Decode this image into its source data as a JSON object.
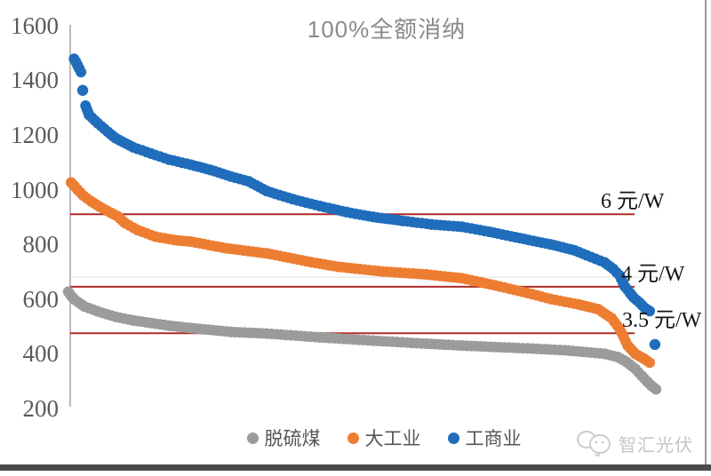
{
  "watermark": {
    "logo": "chat-bubbles-logo",
    "text": "智汇光伏"
  },
  "chart_data": {
    "type": "scatter",
    "title": "100%全额消纳",
    "xlabel": "",
    "ylabel": "",
    "ylim": [
      200,
      1600
    ],
    "yticks": [
      1600,
      1400,
      1200,
      1000,
      800,
      600,
      400,
      200
    ],
    "grid": "off",
    "legend_position": "bottom",
    "aux_gridline_value": 680,
    "threshold_lines": [
      {
        "label": "6 元/W",
        "value": 910,
        "color": "#B12A27"
      },
      {
        "label": "4 元/W",
        "value": 645,
        "color": "#B12A27"
      },
      {
        "label": "3.5 元/W",
        "value": 475,
        "color": "#B12A27"
      }
    ],
    "series": [
      {
        "name": "脱硫煤",
        "color": "#9B9B9B",
        "segments": [
          [
            [
              -0.8,
              627
            ],
            [
              -0.3,
              612
            ],
            [
              0.3,
              598
            ],
            [
              1.5,
              580
            ],
            [
              2,
              573
            ],
            [
              4.3,
              555
            ],
            [
              7.4,
              535
            ],
            [
              10.4,
              522
            ],
            [
              16.6,
              503
            ],
            [
              20.4,
              494
            ],
            [
              27.3,
              480
            ],
            [
              33.5,
              474
            ],
            [
              42.7,
              460
            ],
            [
              51.9,
              448
            ],
            [
              61.1,
              437
            ],
            [
              67.3,
              430
            ],
            [
              79.4,
              419
            ],
            [
              85.7,
              412
            ],
            [
              91.9,
              400
            ],
            [
              94.2,
              388
            ],
            [
              95.7,
              370
            ],
            [
              97.2,
              345
            ],
            [
              98.3,
              320
            ],
            [
              99.2,
              300
            ],
            [
              100,
              283
            ],
            [
              100.8,
              270
            ]
          ]
        ]
      },
      {
        "name": "大工业",
        "color": "#ED7D31",
        "segments": [
          [
            [
              -0.3,
              1026
            ],
            [
              0.3,
              1012
            ],
            [
              0.8,
              1000
            ],
            [
              1.8,
              978
            ],
            [
              3.1,
              958
            ],
            [
              4.6,
              938
            ],
            [
              6.6,
              915
            ],
            [
              7.7,
              903
            ],
            [
              9,
              878
            ],
            [
              11.2,
              852
            ],
            [
              14.3,
              828
            ],
            [
              17.5,
              816
            ],
            [
              20.4,
              810
            ],
            [
              26.4,
              786
            ],
            [
              33.5,
              767
            ],
            [
              41.2,
              735
            ],
            [
              45.8,
              718
            ],
            [
              53.5,
              701
            ],
            [
              61.1,
              690
            ],
            [
              67.3,
              676
            ],
            [
              73,
              650
            ],
            [
              79.4,
              618
            ],
            [
              82.6,
              600
            ],
            [
              87.5,
              580
            ],
            [
              90.8,
              563
            ],
            [
              93.1,
              530
            ],
            [
              94.5,
              491
            ],
            [
              95.9,
              430
            ],
            [
              97.2,
              400
            ],
            [
              98.7,
              382
            ],
            [
              99.7,
              368
            ]
          ]
        ]
      },
      {
        "name": "工商业",
        "color": "#1F6DBB",
        "segments": [
          [
            [
              0.2,
              1478
            ],
            [
              0.5,
              1468
            ],
            [
              0.8,
              1455
            ],
            [
              1.1,
              1442
            ],
            [
              1.4,
              1430
            ]
          ],
          [
            [
              1.7,
              1363
            ]
          ],
          [
            [
              2.2,
              1307
            ],
            [
              2.8,
              1273
            ],
            [
              4.3,
              1243
            ],
            [
              6,
              1212
            ],
            [
              7.4,
              1188
            ],
            [
              10.4,
              1155
            ],
            [
              13.5,
              1132
            ],
            [
              16.6,
              1110
            ],
            [
              20.4,
              1091
            ],
            [
              23.8,
              1072
            ],
            [
              27.3,
              1048
            ],
            [
              30.4,
              1030
            ],
            [
              33.5,
              995
            ],
            [
              38,
              965
            ],
            [
              42.7,
              940
            ],
            [
              47.3,
              918
            ],
            [
              51.9,
              900
            ],
            [
              57,
              886
            ],
            [
              62,
              873
            ],
            [
              67.3,
              864
            ],
            [
              72,
              846
            ],
            [
              76.5,
              826
            ],
            [
              82.6,
              800
            ],
            [
              86.7,
              778
            ],
            [
              88.8,
              760
            ],
            [
              91.9,
              734
            ],
            [
              93.4,
              710
            ],
            [
              94.5,
              686
            ],
            [
              95.4,
              646
            ],
            [
              96.3,
              622
            ],
            [
              96.9,
              606
            ],
            [
              98,
              586
            ],
            [
              98.8,
              568
            ],
            [
              99.7,
              556
            ]
          ],
          [
            [
              100.6,
              434
            ]
          ]
        ]
      }
    ]
  }
}
